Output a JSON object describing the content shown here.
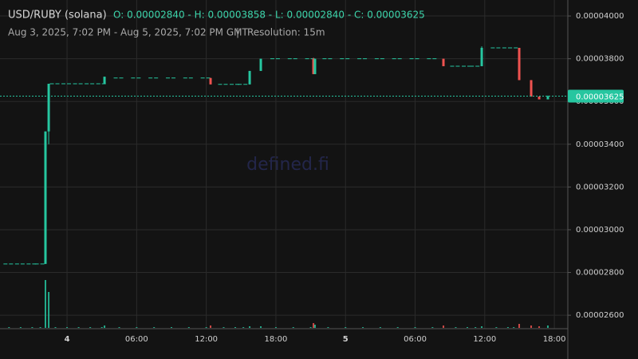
{
  "chart_data": {
    "type": "candlestick",
    "title": "USD/RUBY (solana)",
    "ohlc": "O: 0.00002840 - H: 0.00003858 - L: 0.00002840 - C: 0.00003625",
    "subtitle": "Aug 3, 2025, 7:02 PM - Aug 5, 2025, 7:02 PM GMT",
    "separator": "|",
    "resolution": "Resolution: 15m",
    "watermark": "defined.fi",
    "up_color": "#26c6a0",
    "down_color": "#ef5350",
    "grid": true,
    "x": [
      -5,
      -4,
      -3,
      -2.3,
      -1.86,
      -1.58,
      -1,
      0,
      1,
      2,
      3,
      3.23,
      4.5,
      6,
      7.5,
      9,
      10.5,
      12,
      12.37,
      13.5,
      14.5,
      15.2,
      15.74,
      16.7,
      18,
      19.5,
      21,
      21.24,
      21.37,
      22.5,
      24,
      25.5,
      27,
      28.5,
      30,
      31.5,
      32.44,
      33.5,
      34.5,
      35.2,
      35.74,
      37,
      38,
      38.5,
      38.97,
      40,
      40.69,
      41.44
    ],
    "open": [
      2.84e-05,
      2.84e-05,
      2.84e-05,
      2.84e-05,
      2.84e-05,
      3.46e-05,
      3.683e-05,
      3.683e-05,
      3.683e-05,
      3.683e-05,
      3.683e-05,
      3.683e-05,
      3.71e-05,
      3.71e-05,
      3.71e-05,
      3.71e-05,
      3.71e-05,
      3.71e-05,
      3.71e-05,
      3.68e-05,
      3.68e-05,
      3.68e-05,
      3.68e-05,
      3.743e-05,
      3.8e-05,
      3.8e-05,
      3.8e-05,
      3.8e-05,
      3.728e-05,
      3.8e-05,
      3.8e-05,
      3.8e-05,
      3.8e-05,
      3.8e-05,
      3.8e-05,
      3.8e-05,
      3.8e-05,
      3.765e-05,
      3.765e-05,
      3.765e-05,
      3.765e-05,
      3.851e-05,
      3.851e-05,
      3.851e-05,
      3.851e-05,
      3.7e-05,
      3.623e-05,
      3.61e-05
    ],
    "high": [
      2.84e-05,
      2.84e-05,
      2.84e-05,
      2.84e-05,
      3.46e-05,
      3.683e-05,
      3.683e-05,
      3.683e-05,
      3.683e-05,
      3.683e-05,
      3.683e-05,
      3.716e-05,
      3.71e-05,
      3.71e-05,
      3.71e-05,
      3.71e-05,
      3.71e-05,
      3.71e-05,
      3.71e-05,
      3.68e-05,
      3.68e-05,
      3.68e-05,
      3.743e-05,
      3.8e-05,
      3.8e-05,
      3.8e-05,
      3.8e-05,
      3.805e-05,
      3.8e-05,
      3.8e-05,
      3.8e-05,
      3.8e-05,
      3.8e-05,
      3.8e-05,
      3.8e-05,
      3.8e-05,
      3.8e-05,
      3.765e-05,
      3.765e-05,
      3.765e-05,
      3.858e-05,
      3.851e-05,
      3.851e-05,
      3.851e-05,
      3.851e-05,
      3.7e-05,
      3.623e-05,
      3.628e-05
    ],
    "low": [
      2.84e-05,
      2.84e-05,
      2.84e-05,
      2.84e-05,
      2.84e-05,
      3.4e-05,
      3.683e-05,
      3.683e-05,
      3.683e-05,
      3.683e-05,
      3.683e-05,
      3.683e-05,
      3.71e-05,
      3.71e-05,
      3.71e-05,
      3.71e-05,
      3.71e-05,
      3.71e-05,
      3.68e-05,
      3.68e-05,
      3.68e-05,
      3.68e-05,
      3.68e-05,
      3.743e-05,
      3.8e-05,
      3.8e-05,
      3.8e-05,
      3.728e-05,
      3.728e-05,
      3.8e-05,
      3.8e-05,
      3.8e-05,
      3.8e-05,
      3.8e-05,
      3.8e-05,
      3.8e-05,
      3.765e-05,
      3.765e-05,
      3.765e-05,
      3.765e-05,
      3.765e-05,
      3.851e-05,
      3.851e-05,
      3.851e-05,
      3.7e-05,
      3.623e-05,
      3.61e-05,
      3.61e-05
    ],
    "close": [
      2.84e-05,
      2.84e-05,
      2.84e-05,
      2.84e-05,
      3.46e-05,
      3.683e-05,
      3.683e-05,
      3.683e-05,
      3.683e-05,
      3.683e-05,
      3.683e-05,
      3.716e-05,
      3.71e-05,
      3.71e-05,
      3.71e-05,
      3.71e-05,
      3.71e-05,
      3.71e-05,
      3.68e-05,
      3.68e-05,
      3.68e-05,
      3.68e-05,
      3.743e-05,
      3.8e-05,
      3.8e-05,
      3.8e-05,
      3.8e-05,
      3.728e-05,
      3.8e-05,
      3.8e-05,
      3.8e-05,
      3.8e-05,
      3.8e-05,
      3.8e-05,
      3.8e-05,
      3.8e-05,
      3.765e-05,
      3.765e-05,
      3.765e-05,
      3.765e-05,
      3.851e-05,
      3.851e-05,
      3.851e-05,
      3.851e-05,
      3.7e-05,
      3.623e-05,
      3.61e-05,
      3.625e-05
    ],
    "volume": [
      1,
      1,
      1,
      1,
      60,
      45,
      1,
      1,
      1,
      1,
      1,
      3,
      1,
      1,
      1,
      1,
      1,
      1,
      3,
      1,
      1,
      1,
      2,
      2,
      1,
      1,
      1,
      6,
      4,
      1,
      1,
      1,
      1,
      1,
      1,
      1,
      3,
      1,
      1,
      1,
      2,
      1,
      1,
      1,
      5,
      3,
      2,
      3
    ],
    "price_line": {
      "value": 3.625e-05,
      "label": "0.00003625"
    },
    "xlim": [
      -5.09,
      43.16
    ],
    "xticks": [
      {
        "value": 0,
        "label": "4"
      },
      {
        "value": 6,
        "label": "06:00"
      },
      {
        "value": 12,
        "label": "12:00"
      },
      {
        "value": 18,
        "label": "18:00"
      },
      {
        "value": 24,
        "label": "5"
      },
      {
        "value": 30,
        "label": "06:00"
      },
      {
        "value": 36,
        "label": "12:00"
      },
      {
        "value": 42,
        "label": "18:00"
      }
    ],
    "ylim": [
      2.537e-05,
      4.045e-05
    ],
    "yticks": [
      {
        "value": 4e-05,
        "label": "0.00004000"
      },
      {
        "value": 3.8e-05,
        "label": "0.00003800"
      },
      {
        "value": 3.6e-05,
        "label": "0.00003600"
      },
      {
        "value": 3.4e-05,
        "label": "0.00003400"
      },
      {
        "value": 3.2e-05,
        "label": "0.00003200"
      },
      {
        "value": 3e-05,
        "label": "0.00003000"
      },
      {
        "value": 2.8e-05,
        "label": "0.00002800"
      },
      {
        "value": 2.6e-05,
        "label": "0.00002600"
      }
    ]
  }
}
